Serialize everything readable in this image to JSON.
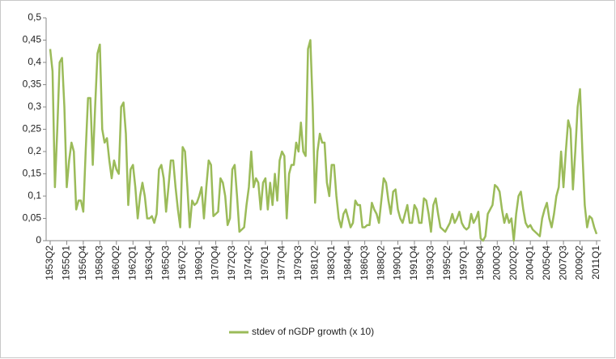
{
  "chart_data": {
    "type": "line",
    "categories": [
      "1953Q2",
      null,
      null,
      null,
      null,
      null,
      null,
      "1955Q1",
      null,
      null,
      null,
      null,
      null,
      null,
      "1956Q4",
      null,
      null,
      null,
      null,
      null,
      null,
      "1958Q3",
      null,
      null,
      null,
      null,
      null,
      null,
      "1960Q2",
      null,
      null,
      null,
      null,
      null,
      null,
      "1962Q1",
      null,
      null,
      null,
      null,
      null,
      null,
      "1963Q4",
      null,
      null,
      null,
      null,
      null,
      null,
      "1965Q3",
      null,
      null,
      null,
      null,
      null,
      null,
      "1967Q2",
      null,
      null,
      null,
      null,
      null,
      null,
      "1969Q1",
      null,
      null,
      null,
      null,
      null,
      null,
      "1970Q4",
      null,
      null,
      null,
      null,
      null,
      null,
      "1972Q3",
      null,
      null,
      null,
      null,
      null,
      null,
      "1974Q2",
      null,
      null,
      null,
      null,
      null,
      null,
      "1976Q1",
      null,
      null,
      null,
      null,
      null,
      null,
      "1977Q4",
      null,
      null,
      null,
      null,
      null,
      null,
      "1979Q3",
      null,
      null,
      null,
      null,
      null,
      null,
      "1981Q2",
      null,
      null,
      null,
      null,
      null,
      null,
      "1983Q1",
      null,
      null,
      null,
      null,
      null,
      null,
      "1984Q4",
      null,
      null,
      null,
      null,
      null,
      null,
      "1986Q3",
      null,
      null,
      null,
      null,
      null,
      null,
      "1988Q2",
      null,
      null,
      null,
      null,
      null,
      null,
      "1990Q1",
      null,
      null,
      null,
      null,
      null,
      null,
      "1991Q4",
      null,
      null,
      null,
      null,
      null,
      null,
      "1993Q3",
      null,
      null,
      null,
      null,
      null,
      null,
      "1995Q2",
      null,
      null,
      null,
      null,
      null,
      null,
      "1997Q1",
      null,
      null,
      null,
      null,
      null,
      null,
      "1998Q4",
      null,
      null,
      null,
      null,
      null,
      null,
      "2000Q3",
      null,
      null,
      null,
      null,
      null,
      null,
      "2002Q2",
      null,
      null,
      null,
      null,
      null,
      null,
      "2004Q1",
      null,
      null,
      null,
      null,
      null,
      null,
      "2005Q4",
      null,
      null,
      null,
      null,
      null,
      null,
      "2007Q3",
      null,
      null,
      null,
      null,
      null,
      null,
      "2009Q2",
      null,
      null,
      null,
      null,
      null,
      null,
      "2011Q1"
    ],
    "series": [
      {
        "name": "stdev of nGDP growth (x 10)",
        "color": "#9bbb59",
        "values": [
          0.43,
          0.38,
          0.12,
          0.25,
          0.4,
          0.41,
          0.3,
          0.12,
          0.18,
          0.22,
          0.2,
          0.07,
          0.09,
          0.09,
          0.065,
          0.2,
          0.32,
          0.32,
          0.17,
          0.3,
          0.42,
          0.44,
          0.25,
          0.22,
          0.23,
          0.18,
          0.14,
          0.18,
          0.16,
          0.15,
          0.3,
          0.31,
          0.24,
          0.08,
          0.16,
          0.17,
          0.12,
          0.05,
          0.1,
          0.13,
          0.1,
          0.05,
          0.05,
          0.055,
          0.04,
          0.06,
          0.16,
          0.17,
          0.14,
          0.065,
          0.12,
          0.18,
          0.18,
          0.12,
          0.07,
          0.03,
          0.21,
          0.2,
          0.12,
          0.03,
          0.09,
          0.08,
          0.085,
          0.1,
          0.12,
          0.05,
          0.12,
          0.18,
          0.17,
          0.055,
          0.06,
          0.065,
          0.14,
          0.13,
          0.1,
          0.035,
          0.05,
          0.16,
          0.17,
          0.1,
          0.02,
          0.025,
          0.03,
          0.08,
          0.12,
          0.2,
          0.12,
          0.14,
          0.13,
          0.07,
          0.13,
          0.14,
          0.07,
          0.13,
          0.08,
          0.15,
          0.09,
          0.18,
          0.2,
          0.19,
          0.05,
          0.15,
          0.17,
          0.17,
          0.22,
          0.2,
          0.265,
          0.2,
          0.19,
          0.43,
          0.45,
          0.3,
          0.085,
          0.2,
          0.24,
          0.22,
          0.22,
          0.13,
          0.1,
          0.17,
          0.17,
          0.1,
          0.05,
          0.03,
          0.06,
          0.07,
          0.05,
          0.03,
          0.04,
          0.09,
          0.08,
          0.08,
          0.03,
          0.03,
          0.035,
          0.035,
          0.085,
          0.07,
          0.06,
          0.04,
          0.09,
          0.14,
          0.13,
          0.09,
          0.06,
          0.11,
          0.115,
          0.07,
          0.05,
          0.04,
          0.06,
          0.08,
          0.04,
          0.04,
          0.08,
          0.07,
          0.04,
          0.04,
          0.095,
          0.09,
          0.06,
          0.02,
          0.08,
          0.095,
          0.06,
          0.03,
          0.025,
          0.02,
          0.03,
          0.04,
          0.06,
          0.04,
          0.05,
          0.065,
          0.04,
          0.03,
          0.025,
          0.03,
          0.06,
          0.04,
          0.05,
          0.065,
          0.005,
          0,
          0.01,
          0.06,
          0.07,
          0.08,
          0.125,
          0.12,
          0.11,
          0.07,
          0.04,
          0.06,
          0.04,
          0.05,
          0,
          0.06,
          0.1,
          0.11,
          0.07,
          0.04,
          0.03,
          0.035,
          0.025,
          0.02,
          0.015,
          0.01,
          0.05,
          0.07,
          0.085,
          0.05,
          0.03,
          0.06,
          0.1,
          0.12,
          0.2,
          0.12,
          0.2,
          0.27,
          0.25,
          0.115,
          0.2,
          0.3,
          0.34,
          0.2,
          0.08,
          0.03,
          0.055,
          0.05,
          0.03,
          0.015
        ]
      }
    ],
    "ylim": [
      0,
      0.5
    ],
    "yticks": [
      0,
      {
        "value": 0.05,
        "label": "0,05"
      },
      {
        "value": 0.1,
        "label": "0,1"
      },
      {
        "value": 0.15,
        "label": "0,15"
      },
      {
        "value": 0.2,
        "label": "0,2"
      },
      {
        "value": 0.25,
        "label": "0,25"
      },
      {
        "value": 0.3,
        "label": "0,3"
      },
      {
        "value": 0.35,
        "label": "0,35"
      },
      {
        "value": 0.4,
        "label": "0,4"
      },
      {
        "value": 0.45,
        "label": "0,45"
      },
      {
        "value": 0.5,
        "label": "0,5"
      }
    ],
    "grid": false,
    "legend": "bottom"
  }
}
